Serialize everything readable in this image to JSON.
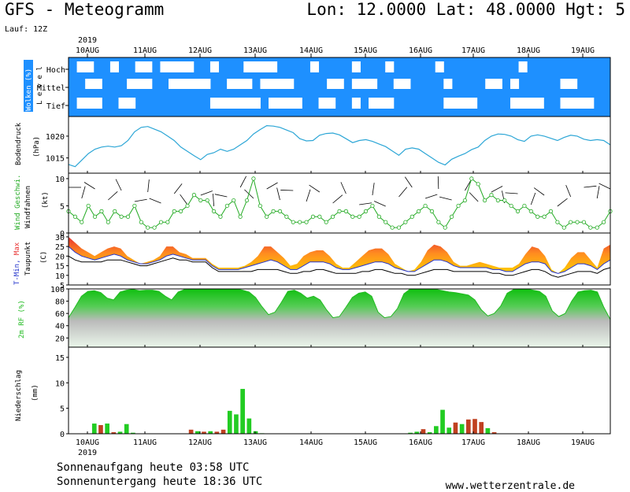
{
  "header": {
    "title": "GFS - Meteogramm",
    "location": "Lon: 12.0000 Lat: 48.0000 Hgt: 5",
    "run": "Lauf: 12Z"
  },
  "footer": {
    "sunrise": "Sonnenaufgang heute 03:58 UTC",
    "sunset": "Sonnenuntergang heute 18:36 UTC",
    "website": "www.wetterzentrale.de"
  },
  "colors": {
    "cloud_bg": "#1e90ff",
    "cloud": "#ffffff",
    "pressure": "#2ca6d6",
    "wind": "#22aa22",
    "temp_max": "#e83030",
    "temp_mid": "#ffa020",
    "temp_min": "#2233cc",
    "dewpoint": "#000000",
    "humidity": "#22bb22",
    "rain": "#22cc22",
    "rain_alt": "#c04020"
  },
  "chart_data": [
    {
      "type": "heatmap",
      "panel": "clouds",
      "ylabel": "Wolken (%)",
      "ylabel2": "L e v e l",
      "levels": [
        "Hoch",
        "Mittel",
        "Tief"
      ],
      "x_ticks": [
        "2019",
        "10AUG",
        "11AUG",
        "12AUG",
        "13AUG",
        "14AUG",
        "15AUG",
        "16AUG",
        "17AUG",
        "18AUG",
        "19AUG"
      ],
      "cover": {
        "Hoch": [
          0,
          1,
          1,
          0,
          0,
          1,
          0,
          0,
          1,
          1,
          0,
          1,
          1,
          1,
          1,
          0,
          0,
          1,
          0,
          0,
          0,
          1,
          1,
          1,
          1,
          0,
          0,
          0,
          0,
          1,
          0,
          0,
          0,
          0,
          1,
          0,
          0,
          0,
          1,
          0,
          0,
          0,
          0,
          0,
          1,
          0,
          0,
          0,
          0,
          0,
          0,
          0,
          0,
          0,
          1,
          0,
          0,
          0,
          0,
          0,
          0,
          0,
          0,
          0,
          0
        ],
        "Mittel": [
          0,
          0,
          1,
          1,
          0,
          0,
          0,
          1,
          1,
          1,
          0,
          0,
          1,
          1,
          1,
          1,
          1,
          0,
          0,
          1,
          1,
          1,
          0,
          1,
          1,
          1,
          1,
          0,
          0,
          0,
          0,
          1,
          1,
          0,
          1,
          1,
          1,
          0,
          0,
          1,
          1,
          0,
          0,
          0,
          0,
          1,
          0,
          0,
          0,
          0,
          1,
          1,
          0,
          1,
          0,
          0,
          0,
          0,
          0,
          1,
          1,
          0,
          0,
          0,
          0
        ],
        "Tief": [
          0,
          1,
          1,
          1,
          0,
          0,
          1,
          1,
          0,
          0,
          0,
          0,
          0,
          0,
          0,
          0,
          0,
          1,
          1,
          1,
          1,
          1,
          1,
          0,
          1,
          1,
          1,
          1,
          0,
          0,
          1,
          1,
          0,
          0,
          1,
          0,
          1,
          1,
          1,
          0,
          0,
          0,
          0,
          0,
          0,
          1,
          1,
          1,
          1,
          0,
          0,
          0,
          0,
          1,
          1,
          1,
          1,
          0,
          0,
          1,
          1,
          1,
          1,
          0,
          0
        ]
      }
    },
    {
      "type": "line",
      "panel": "pressure",
      "ylabel": "Bodendruck",
      "unit": "(hPa)",
      "yticks": [
        1015,
        1020
      ],
      "ylim": [
        1011.5,
        1024.5
      ],
      "values": [
        1013.5,
        1013.0,
        1014.5,
        1016.0,
        1017.0,
        1017.5,
        1017.7,
        1017.5,
        1017.8,
        1019.0,
        1021.0,
        1022.0,
        1022.2,
        1021.6,
        1021.0,
        1020.0,
        1019.0,
        1017.5,
        1016.5,
        1015.5,
        1014.6,
        1015.8,
        1016.2,
        1017.0,
        1016.5,
        1017.0,
        1018.0,
        1019.0,
        1020.5,
        1021.5,
        1022.4,
        1022.3,
        1022.0,
        1021.4,
        1020.8,
        1019.4,
        1018.9,
        1019.0,
        1020.2,
        1020.6,
        1020.7,
        1020.3,
        1019.4,
        1018.5,
        1019.0,
        1019.2,
        1018.8,
        1018.2,
        1017.6,
        1016.6,
        1015.6,
        1017.0,
        1017.3,
        1017.0,
        1016.0,
        1015.0,
        1014.0,
        1013.4,
        1014.7,
        1015.4,
        1016.0,
        1016.9,
        1017.5,
        1019.0,
        1020.0,
        1020.5,
        1020.4,
        1020.0,
        1019.2,
        1018.8,
        1020.0,
        1020.3,
        1020.0,
        1019.5,
        1019.0,
        1019.7,
        1020.2,
        1020.0,
        1019.3,
        1019.0,
        1019.2,
        1019.0,
        1018.0
      ]
    },
    {
      "type": "line",
      "panel": "wind",
      "ylabel_green": "Wind Geschwi.",
      "ylabel_black": "Windfahnen",
      "unit": "(kt)",
      "yticks": [
        0,
        5,
        10
      ],
      "ylim": [
        0,
        11
      ],
      "values": [
        4,
        3,
        2,
        5,
        3,
        4,
        2,
        4,
        3,
        3,
        5,
        2,
        1,
        1,
        2,
        2,
        4,
        4,
        5,
        7,
        6,
        6,
        4,
        3,
        5,
        6,
        3,
        6,
        10,
        5,
        3,
        4,
        4,
        3,
        2,
        2,
        2,
        3,
        3,
        2,
        3,
        4,
        4,
        3,
        3,
        4,
        5,
        3,
        2,
        1,
        1,
        2,
        3,
        4,
        5,
        4,
        2,
        1,
        3,
        5,
        6,
        10,
        9,
        6,
        7,
        6,
        6,
        5,
        4,
        5,
        4,
        3,
        3,
        4,
        2,
        1,
        2,
        2,
        2,
        1,
        1,
        2,
        4
      ]
    },
    {
      "type": "area",
      "panel": "temperature",
      "ylabel_min": "T-Min,",
      "ylabel_max": "Max",
      "ylabel2": "Taupunkt",
      "unit": "(C)",
      "yticks": [
        5,
        10,
        15,
        20,
        25,
        30
      ],
      "ylim": [
        5,
        32
      ],
      "tmax": [
        30,
        27,
        24,
        22,
        20,
        22,
        24,
        25,
        24,
        20,
        18,
        16,
        17,
        18,
        20,
        25,
        25,
        22,
        21,
        19,
        19,
        19,
        16,
        14,
        14,
        14,
        14,
        15,
        17,
        20,
        25,
        25,
        22,
        19,
        15,
        16,
        20,
        22,
        23,
        23,
        20,
        16,
        14,
        14,
        17,
        20,
        23,
        24,
        24,
        21,
        16,
        14,
        12,
        13,
        17,
        23,
        26,
        25,
        22,
        17,
        15,
        15,
        16,
        17,
        16,
        15,
        14,
        14,
        14,
        16,
        21,
        25,
        24,
        20,
        13,
        11,
        14,
        19,
        22,
        22,
        18,
        14,
        24,
        26
      ],
      "tmin": [
        25,
        22,
        20,
        19,
        18,
        19,
        20,
        21,
        20,
        18,
        17,
        16,
        16,
        17,
        18,
        20,
        21,
        20,
        19,
        18,
        18,
        18,
        15,
        13,
        13,
        13,
        13,
        14,
        15,
        16,
        17,
        18,
        17,
        15,
        13,
        13,
        15,
        17,
        17,
        17,
        16,
        14,
        13,
        13,
        14,
        15,
        16,
        17,
        17,
        16,
        14,
        13,
        12,
        12,
        14,
        16,
        18,
        18,
        17,
        15,
        14,
        14,
        14,
        14,
        14,
        13,
        13,
        12,
        12,
        14,
        16,
        17,
        17,
        16,
        12,
        11,
        12,
        14,
        16,
        16,
        15,
        13,
        16,
        18
      ],
      "dewpoint": [
        20,
        18,
        17,
        17,
        17,
        17,
        18,
        18,
        18,
        17,
        16,
        15,
        15,
        16,
        17,
        18,
        19,
        18,
        18,
        17,
        17,
        17,
        14,
        12,
        12,
        12,
        12,
        12,
        12,
        13,
        13,
        13,
        13,
        12,
        11,
        11,
        12,
        12,
        13,
        13,
        12,
        11,
        11,
        11,
        11,
        12,
        12,
        13,
        13,
        12,
        11,
        11,
        10,
        10,
        11,
        12,
        13,
        13,
        13,
        12,
        12,
        12,
        12,
        12,
        12,
        11,
        11,
        10,
        10,
        11,
        12,
        13,
        13,
        12,
        10,
        9,
        10,
        11,
        12,
        12,
        12,
        11,
        13,
        14
      ]
    },
    {
      "type": "area",
      "panel": "humidity",
      "ylabel": "2m RF (%)",
      "yticks": [
        20,
        40,
        60,
        80,
        100
      ],
      "ylim": [
        5,
        100
      ],
      "values": [
        53,
        70,
        88,
        96,
        97,
        94,
        85,
        82,
        95,
        98,
        99,
        97,
        98,
        98,
        96,
        88,
        82,
        95,
        99,
        100,
        100,
        100,
        100,
        100,
        100,
        100,
        100,
        98,
        95,
        86,
        71,
        58,
        62,
        78,
        96,
        98,
        93,
        85,
        88,
        82,
        66,
        53,
        55,
        70,
        86,
        93,
        95,
        88,
        62,
        53,
        55,
        68,
        92,
        100,
        100,
        100,
        100,
        99,
        97,
        95,
        94,
        92,
        90,
        82,
        66,
        56,
        60,
        72,
        93,
        99,
        100,
        100,
        98,
        96,
        88,
        64,
        55,
        60,
        80,
        95,
        97,
        98,
        95,
        70,
        50
      ]
    },
    {
      "type": "bar",
      "panel": "precipitation",
      "ylabel": "Niederschlag",
      "unit": "(mm)",
      "yticks": [
        0,
        5,
        10,
        15
      ],
      "ylim": [
        0,
        17
      ],
      "x_ticks": [
        "10AUG",
        "2019",
        "11AUG",
        "12AUG",
        "13AUG",
        "14AUG",
        "15AUG",
        "16AUG",
        "17AUG",
        "18AUG",
        "19AUG"
      ],
      "values": [
        0,
        0,
        0,
        0,
        2.0,
        1.7,
        2.0,
        0.3,
        0.4,
        1.9,
        0.2,
        0,
        0,
        0,
        0,
        0,
        0,
        0,
        0,
        0.8,
        0.5,
        0.4,
        0.5,
        0.4,
        0.8,
        4.5,
        3.8,
        8.8,
        3.0,
        0.5,
        0.1,
        0,
        0,
        0,
        0,
        0,
        0,
        0,
        0,
        0,
        0,
        0,
        0,
        0,
        0,
        0,
        0,
        0,
        0,
        0,
        0,
        0,
        0,
        0.2,
        0.4,
        0.9,
        0.3,
        1.5,
        4.7,
        1.2,
        2.2,
        1.9,
        2.8,
        2.9,
        2.3,
        1.1,
        0.3,
        0,
        0,
        0,
        0,
        0,
        0,
        0,
        0,
        0,
        0,
        0,
        0,
        0,
        0,
        0,
        0,
        0,
        0
      ],
      "alt_color_indices": [
        5,
        7,
        19,
        21,
        23,
        24,
        55,
        60,
        62,
        63,
        64,
        66
      ]
    }
  ]
}
